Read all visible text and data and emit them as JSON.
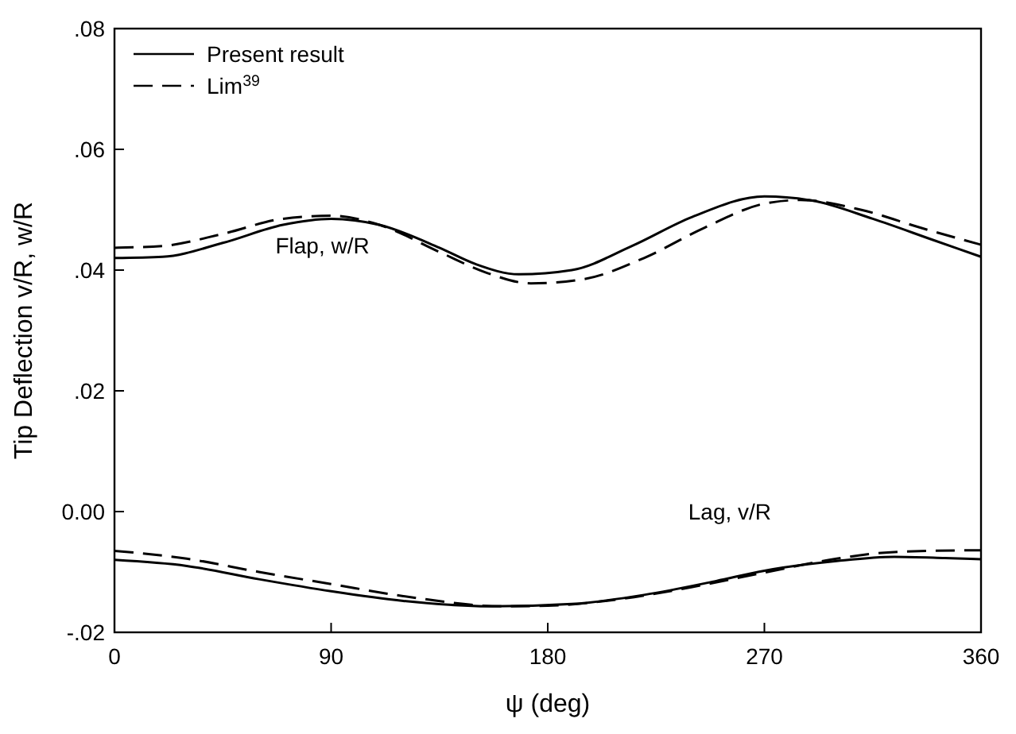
{
  "chart_data": {
    "type": "line",
    "xlabel": "ψ (deg)",
    "ylabel": "Tip Deflection v/R, w/R",
    "xlim": [
      0,
      360
    ],
    "xticks": [
      0,
      90,
      180,
      270,
      360
    ],
    "ylim": [
      -0.02,
      0.08
    ],
    "yticks": [
      {
        "value": -0.02,
        "label": "-.02"
      },
      {
        "value": 0,
        "label": "0.00"
      },
      {
        "value": 0.02,
        "label": ".02"
      },
      {
        "value": 0.04,
        "label": ".04"
      },
      {
        "value": 0.06,
        "label": ".06"
      },
      {
        "value": 0.08,
        "label": ".08"
      }
    ],
    "grid": false,
    "legend": "top left",
    "marker": "none",
    "annotations": [
      "Flap, w/R",
      "Lag, v/R"
    ],
    "series": [
      {
        "name": "Present result",
        "color": "#000000",
        "line_style": "solid",
        "x": [
          0,
          20,
          45,
          70,
          90,
          110,
          135,
          150,
          168,
          190,
          215,
          240,
          270,
          290,
          315,
          340,
          360
        ],
        "values": [
          0.042,
          0.0422,
          0.0445,
          0.0475,
          0.0485,
          0.0475,
          0.0437,
          0.041,
          0.0393,
          0.04,
          0.044,
          0.0488,
          0.0522,
          0.0515,
          0.0485,
          0.045,
          0.0422
        ]
      },
      {
        "name": "Lim$^{39}$",
        "color": "#000000",
        "line_style": "dashed",
        "x": [
          0,
          20,
          45,
          70,
          90,
          110,
          135,
          155,
          173,
          195,
          220,
          245,
          270,
          285,
          310,
          335,
          360
        ],
        "values": [
          0.0437,
          0.044,
          0.046,
          0.0485,
          0.049,
          0.0475,
          0.043,
          0.0395,
          0.0378,
          0.0385,
          0.042,
          0.047,
          0.051,
          0.0516,
          0.05,
          0.047,
          0.0442
        ]
      },
      {
        "color": "#000000",
        "line_style": "solid",
        "x": [
          0,
          30,
          60,
          90,
          120,
          157,
          190,
          220,
          250,
          270,
          300,
          324,
          345,
          360
        ],
        "values": [
          -0.008,
          -0.009,
          -0.0112,
          -0.0132,
          -0.0148,
          -0.0157,
          -0.0153,
          -0.0138,
          -0.0115,
          -0.0098,
          -0.0082,
          -0.0075,
          -0.0077,
          -0.0079
        ]
      },
      {
        "color": "#000000",
        "line_style": "dashed",
        "x": [
          0,
          30,
          60,
          90,
          120,
          162,
          180,
          210,
          240,
          270,
          300,
          320,
          340,
          360
        ],
        "values": [
          -0.0065,
          -0.0078,
          -0.01,
          -0.012,
          -0.014,
          -0.0157,
          -0.0156,
          -0.0145,
          -0.0125,
          -0.0101,
          -0.0078,
          -0.0068,
          -0.0065,
          -0.0064
        ]
      }
    ]
  }
}
